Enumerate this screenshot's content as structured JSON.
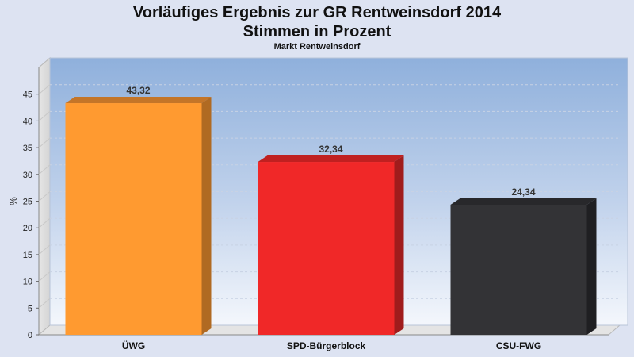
{
  "chart_data": {
    "type": "bar",
    "title_line1": "Vorläufiges Ergebnis zur GR Rentweinsdorf 2014",
    "title_line2": "Stimmen in Prozent",
    "subtitle": "Markt Rentweinsdorf",
    "ylabel": "%",
    "xlabel": "",
    "ylim": [
      0,
      50
    ],
    "yticks": [
      0,
      5,
      10,
      15,
      20,
      25,
      30,
      35,
      40,
      45
    ],
    "grid": true,
    "categories": [
      "ÜWG",
      "SPD-Bürgerblock",
      "CSU-FWG"
    ],
    "values": [
      43.32,
      32.34,
      24.34
    ],
    "value_labels": [
      "43,32",
      "32,34",
      "24,34"
    ],
    "colors": [
      "#ff9a30",
      "#f02828",
      "#333336"
    ],
    "side_colors": [
      "#b06a22",
      "#a01c1c",
      "#1f1f22"
    ],
    "top_colors": [
      "#c47528",
      "#c02020",
      "#28282b"
    ]
  }
}
